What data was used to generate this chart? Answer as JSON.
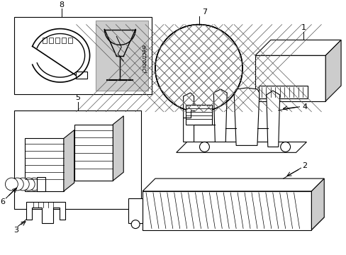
{
  "background_color": "#ffffff",
  "line_color": "#000000",
  "gray_color": "#999999",
  "light_gray": "#cccccc",
  "figsize": [
    4.89,
    3.6
  ],
  "dpi": 100
}
